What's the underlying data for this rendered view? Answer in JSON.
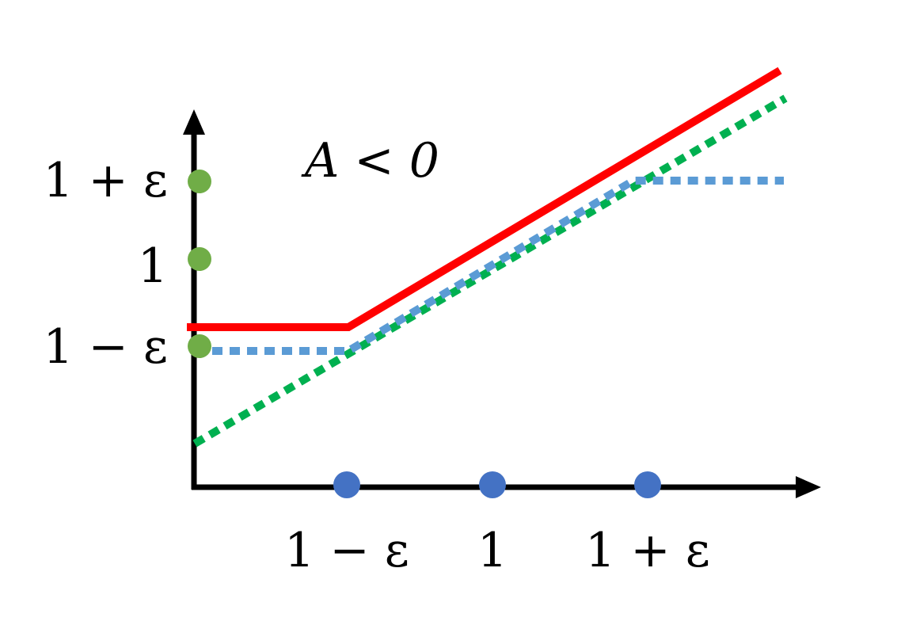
{
  "condition_label": "A < 0",
  "y_axis": {
    "tick_labels": [
      "1 + ε",
      "1",
      "1 − ε"
    ]
  },
  "x_axis": {
    "tick_labels": [
      "1 − ε",
      "1",
      "1 + ε"
    ]
  },
  "colors": {
    "clipped_objective": "#ff0000",
    "clipped_ratio": "#5b9bd5",
    "unclipped_ratio": "#00b050",
    "y_markers": "#70ad47",
    "x_markers": "#4472c4",
    "axes": "#000000"
  }
}
